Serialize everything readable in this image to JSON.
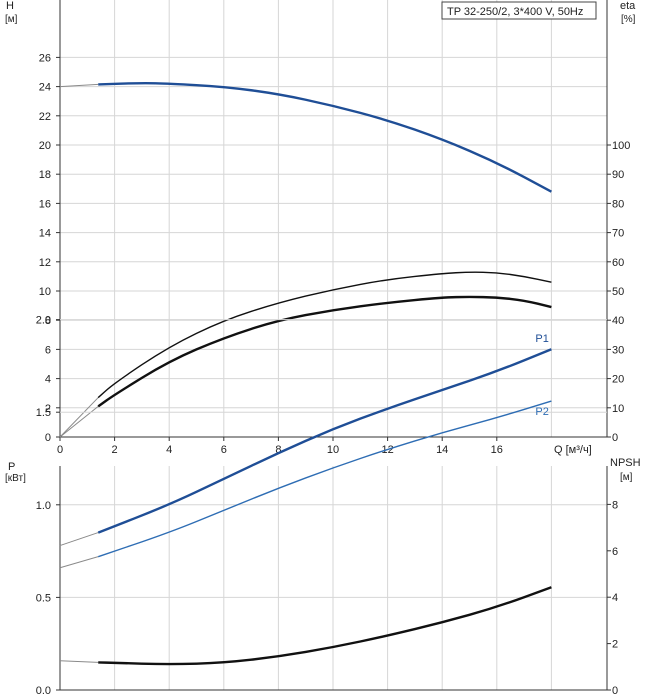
{
  "chart_data": [
    {
      "type": "line",
      "title": "TP 32-250/2, 3*400 V, 50Hz",
      "xlabel": "Q [м³/ч]",
      "x_ticks": [
        "0",
        "2",
        "4",
        "6",
        "8",
        "10",
        "12",
        "14",
        "16"
      ],
      "xlim": [
        0,
        18
      ],
      "ylabel_left": "H",
      "ylabel_left_unit": "[м]",
      "ylim_left": [
        0,
        28
      ],
      "y_ticks_left": [
        "0",
        "2",
        "4",
        "6",
        "8",
        "10",
        "12",
        "14",
        "16",
        "18",
        "20",
        "22",
        "24",
        "26"
      ],
      "ylabel_right": "eta",
      "ylabel_right_unit": "[%]",
      "ylim_right": [
        0,
        140
      ],
      "y_ticks_right": [
        "0",
        "10",
        "20",
        "30",
        "40",
        "50",
        "60",
        "70",
        "80",
        "90",
        "100"
      ],
      "grid": true,
      "series": [
        {
          "axis": "left",
          "color": "#1f4e96",
          "x": [
            0,
            1.4,
            3,
            4,
            6,
            8,
            10,
            12,
            14,
            16,
            18
          ],
          "y": [
            24.0,
            24.15,
            24.25,
            24.2,
            24.0,
            23.5,
            22.7,
            21.7,
            20.4,
            18.8,
            16.8
          ]
        },
        {
          "axis": "right",
          "color": "#111111",
          "x": [
            0,
            1.4,
            2,
            4,
            6,
            8,
            10,
            12,
            14,
            15,
            16,
            17,
            18
          ],
          "y": [
            0,
            13.5,
            18.5,
            31,
            40,
            46,
            50.5,
            54,
            56,
            56.5,
            56.3,
            55,
            53
          ]
        },
        {
          "axis": "right",
          "color": "#111111",
          "x": [
            0,
            1.4,
            2,
            4,
            6,
            8,
            10,
            12,
            14,
            15,
            16,
            17,
            18
          ],
          "y": [
            0,
            10.5,
            14.5,
            26,
            34,
            40,
            43.5,
            46,
            47.8,
            48,
            47.8,
            46.8,
            44.5
          ]
        }
      ]
    },
    {
      "type": "line",
      "xlabel": "",
      "xlim": [
        0,
        18
      ],
      "ylabel_left": "P",
      "ylabel_left_unit": "[кВт]",
      "ylim_left": [
        0,
        2.5
      ],
      "y_ticks_left": [
        "0.0",
        "0.5",
        "1.0",
        "1.5",
        "2.0"
      ],
      "ylabel_right": "NPSH",
      "ylabel_right_unit": "[м]",
      "ylim_right": [
        0,
        10
      ],
      "y_ticks_right": [
        "0",
        "2",
        "4",
        "6",
        "8"
      ],
      "grid": true,
      "series": [
        {
          "name": "P1",
          "axis": "left",
          "color": "#1f4e96",
          "x": [
            0,
            1.4,
            4,
            6,
            8,
            10,
            12,
            14,
            16,
            18
          ],
          "y": [
            0.78,
            0.85,
            1.0,
            1.14,
            1.28,
            1.41,
            1.52,
            1.62,
            1.72,
            1.84
          ]
        },
        {
          "name": "P2",
          "axis": "left",
          "color": "#2e6db4",
          "x": [
            0,
            1.4,
            4,
            6,
            8,
            10,
            12,
            14,
            16,
            18
          ],
          "y": [
            0.66,
            0.72,
            0.85,
            0.97,
            1.09,
            1.2,
            1.3,
            1.39,
            1.47,
            1.56
          ]
        },
        {
          "axis": "right",
          "color": "#111111",
          "x": [
            0,
            1.4,
            2,
            4,
            6,
            8,
            10,
            12,
            14,
            16,
            18
          ],
          "y": [
            1.26,
            1.19,
            1.17,
            1.1,
            1.17,
            1.44,
            1.84,
            2.34,
            2.91,
            3.57,
            4.43
          ]
        }
      ]
    }
  ]
}
